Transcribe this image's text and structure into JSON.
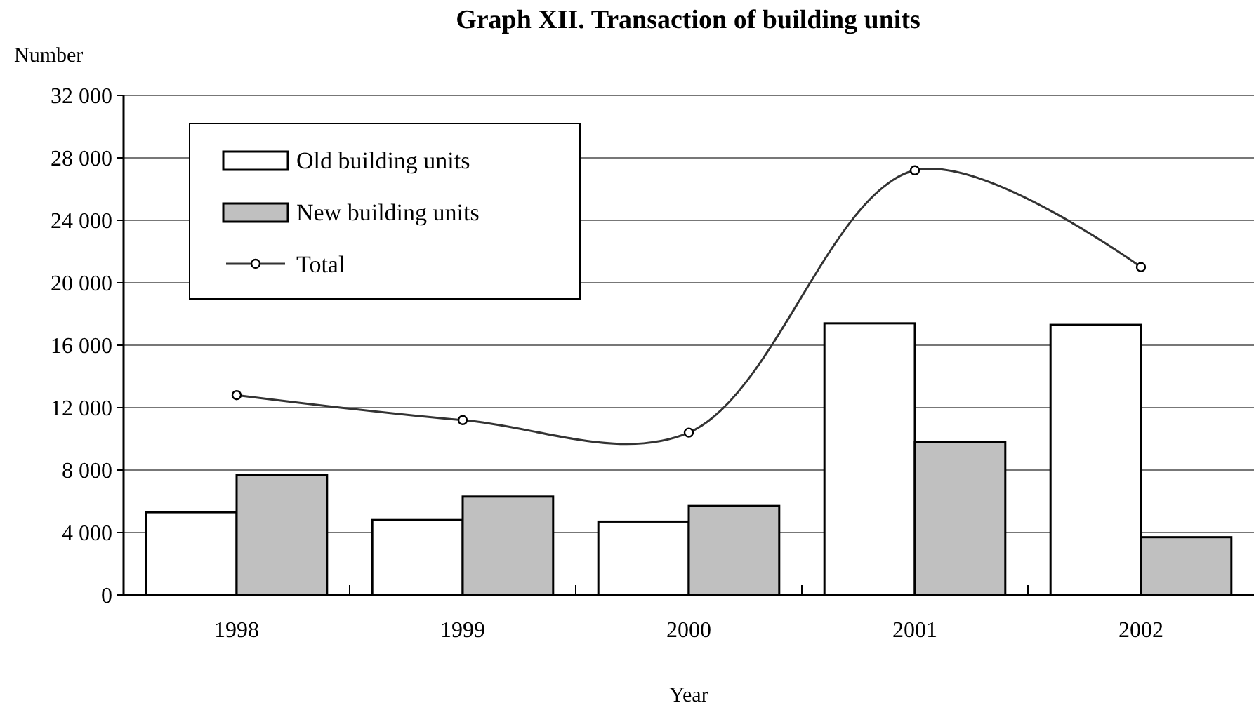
{
  "chart_data": {
    "type": "bar",
    "title": "Graph XII. Transaction of building units",
    "ylabel": "Number",
    "xlabel": "Year",
    "categories": [
      "1998",
      "1999",
      "2000",
      "2001",
      "2002"
    ],
    "series": [
      {
        "name": "Old building units",
        "color": "#ffffff",
        "values": [
          5300,
          4800,
          4700,
          17400,
          17300
        ]
      },
      {
        "name": "New building units",
        "color": "#c0c0c0",
        "values": [
          7700,
          6300,
          5700,
          9800,
          3700
        ]
      },
      {
        "name": "Total",
        "type": "line",
        "color": "#333333",
        "marker": "circle",
        "values": [
          12800,
          11200,
          10400,
          27200,
          21000
        ]
      }
    ],
    "ylim": [
      0,
      32000
    ],
    "yticks": [
      {
        "value": 0,
        "label": "0"
      },
      {
        "value": 4000,
        "label": "4 000"
      },
      {
        "value": 8000,
        "label": "8 000"
      },
      {
        "value": 12000,
        "label": "12 000"
      },
      {
        "value": 16000,
        "label": "16 000"
      },
      {
        "value": 20000,
        "label": "20 000"
      },
      {
        "value": 24000,
        "label": "24 000"
      },
      {
        "value": 28000,
        "label": "28 000"
      },
      {
        "value": 32000,
        "label": "32 000"
      }
    ],
    "grid": "y",
    "legend": "top left"
  }
}
